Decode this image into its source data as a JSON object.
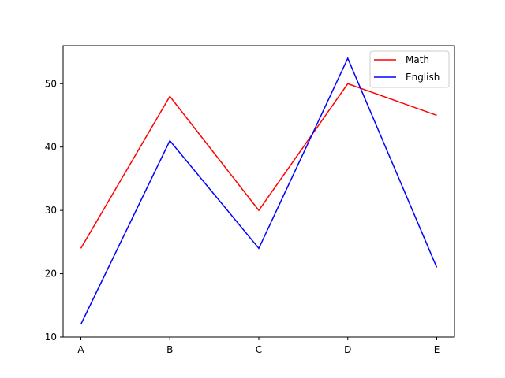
{
  "chart_data": {
    "type": "line",
    "categories": [
      "A",
      "B",
      "C",
      "D",
      "E"
    ],
    "series": [
      {
        "name": "Math",
        "color": "#ff0000",
        "values": [
          24,
          48,
          30,
          50,
          45
        ]
      },
      {
        "name": "English",
        "color": "#0000ff",
        "values": [
          12,
          41,
          24,
          54,
          21
        ]
      }
    ],
    "title": "",
    "xlabel": "",
    "ylabel": "",
    "ylim": [
      10,
      56
    ],
    "yticks": [
      10,
      20,
      30,
      40,
      50
    ],
    "grid": false,
    "legend_position": "top-right"
  }
}
